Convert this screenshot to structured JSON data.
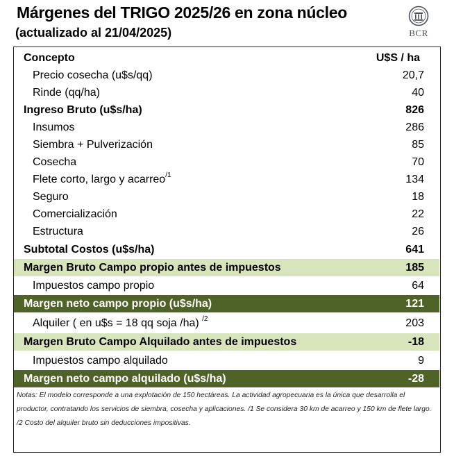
{
  "header": {
    "title": "Márgenes del TRIGO 2025/26 en zona núcleo",
    "subtitle": "(actualizado al 21/04/2025)",
    "logo_text": "BCR"
  },
  "table": {
    "col_concept": "Concepto",
    "col_unit": "U$S / ha",
    "rows": [
      {
        "label": "Precio cosecha (u$s/qq)",
        "value": "20,7",
        "sup": ""
      },
      {
        "label": "Rinde (qq/ha)",
        "value": "40",
        "sup": ""
      },
      {
        "label": "Ingreso Bruto (u$s/ha)",
        "value": "826",
        "sup": ""
      },
      {
        "label": "Insumos",
        "value": "286",
        "sup": ""
      },
      {
        "label": "Siembra + Pulverización",
        "value": "85",
        "sup": ""
      },
      {
        "label": "Cosecha",
        "value": "70",
        "sup": ""
      },
      {
        "label": "Flete corto, largo y acarreo",
        "value": "134",
        "sup": "/1"
      },
      {
        "label": "Seguro",
        "value": "18",
        "sup": ""
      },
      {
        "label": "Comercialización",
        "value": "22",
        "sup": ""
      },
      {
        "label": "Estructura",
        "value": "26",
        "sup": ""
      },
      {
        "label": "Subtotal Costos (u$s/ha)",
        "value": "641",
        "sup": ""
      },
      {
        "label": "Margen Bruto Campo propio antes de impuestos",
        "value": "185",
        "sup": ""
      },
      {
        "label": "Impuestos  campo propio",
        "value": "64",
        "sup": ""
      },
      {
        "label": "Margen neto campo propio (u$s/ha)",
        "value": "121",
        "sup": ""
      },
      {
        "label": "Alquiler ( en u$s = 18 qq soja /ha) ",
        "value": "203",
        "sup": "/2"
      },
      {
        "label": "Margen Bruto Campo Alquilado antes de impuestos",
        "value": "-18",
        "sup": ""
      },
      {
        "label": "Impuestos campo alquilado",
        "value": "9",
        "sup": ""
      },
      {
        "label": "Margen neto campo alquilado (u$s/ha)",
        "value": "-28",
        "sup": ""
      }
    ]
  },
  "notes": {
    "text": "Notas: El modelo corresponde a una explotación de 150 hectáreas. La actividad agropecuaria es la única que desarrolla el productor, contratando los servicios de siembra, cosecha y aplicaciones.  /1  Se considera 30 km de acarreo y 150 km de flete largo.  /2  Costo del alquiler bruto sin deducciones impositivas."
  },
  "colors": {
    "highlight_light": "#d8e4bc",
    "highlight_dark": "#4f6228"
  }
}
